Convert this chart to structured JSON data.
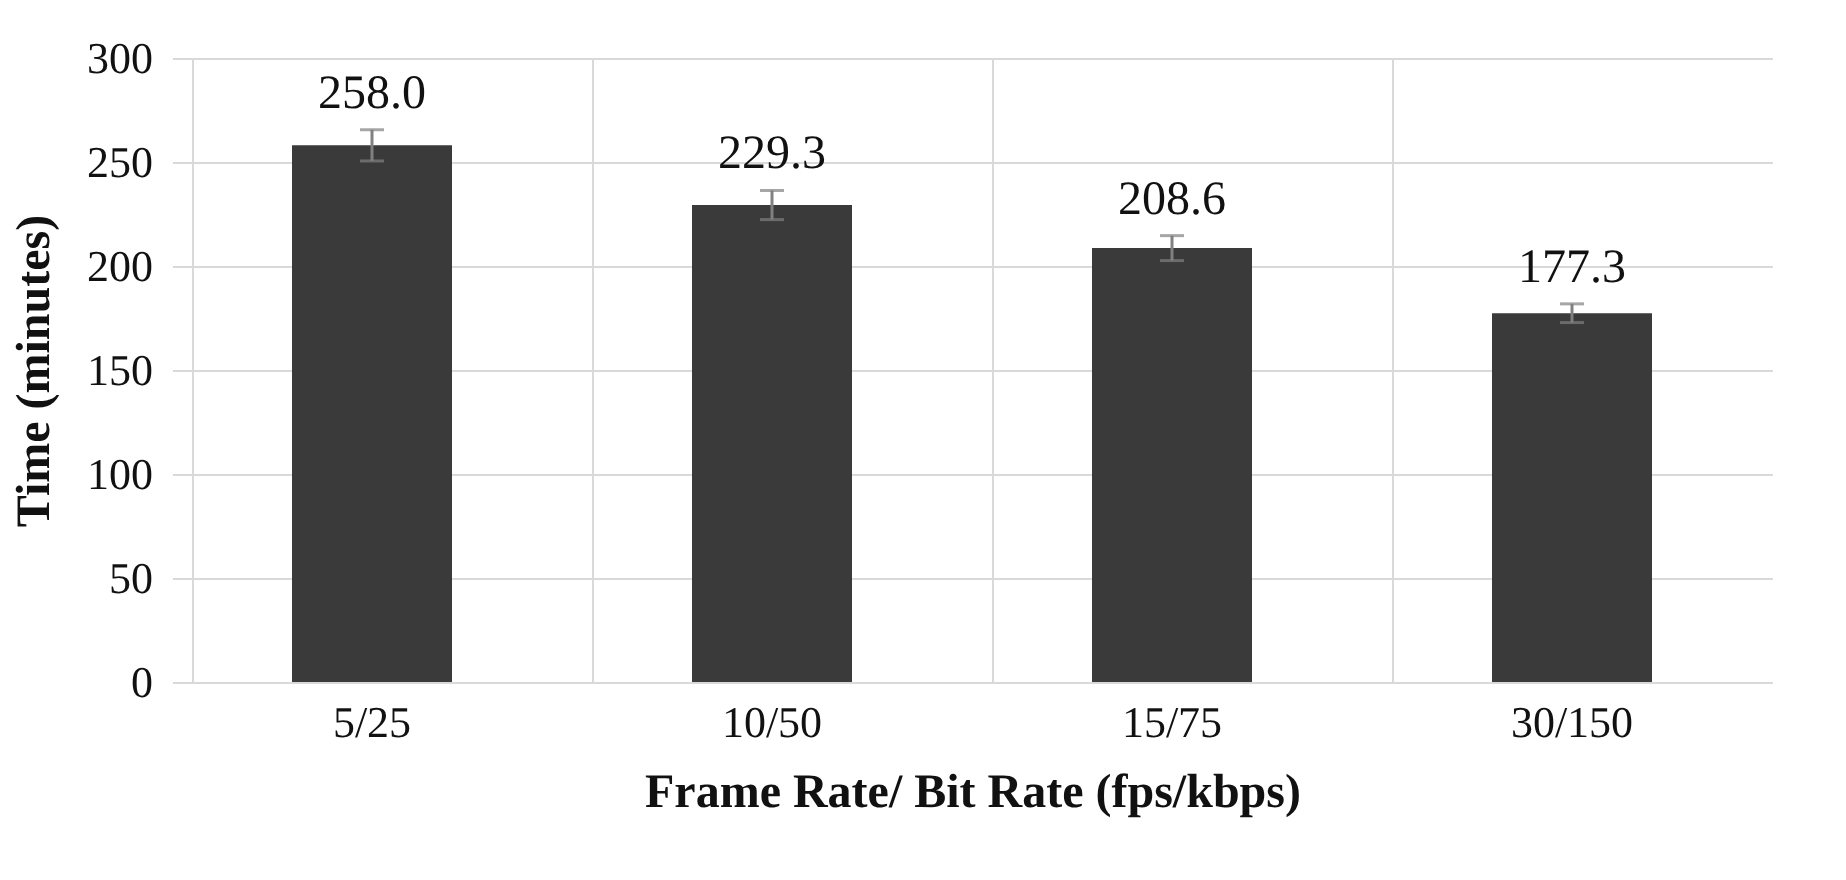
{
  "chart_data": {
    "type": "bar",
    "xlabel": "Frame Rate/ Bit Rate (fps/kbps)",
    "ylabel": "Time (minutes)",
    "categories": [
      "5/25",
      "10/50",
      "15/75",
      "30/150"
    ],
    "values": [
      258.0,
      229.3,
      208.6,
      177.3
    ],
    "errors": [
      7.5,
      7,
      6,
      4.5
    ],
    "color": "#3a3a3a",
    "ylim": [
      0,
      300
    ],
    "yticks": [
      0,
      50,
      100,
      150,
      200,
      250,
      300
    ],
    "value_labels": [
      "258.0",
      "229.3",
      "208.6",
      "177.3"
    ],
    "grid": true
  }
}
